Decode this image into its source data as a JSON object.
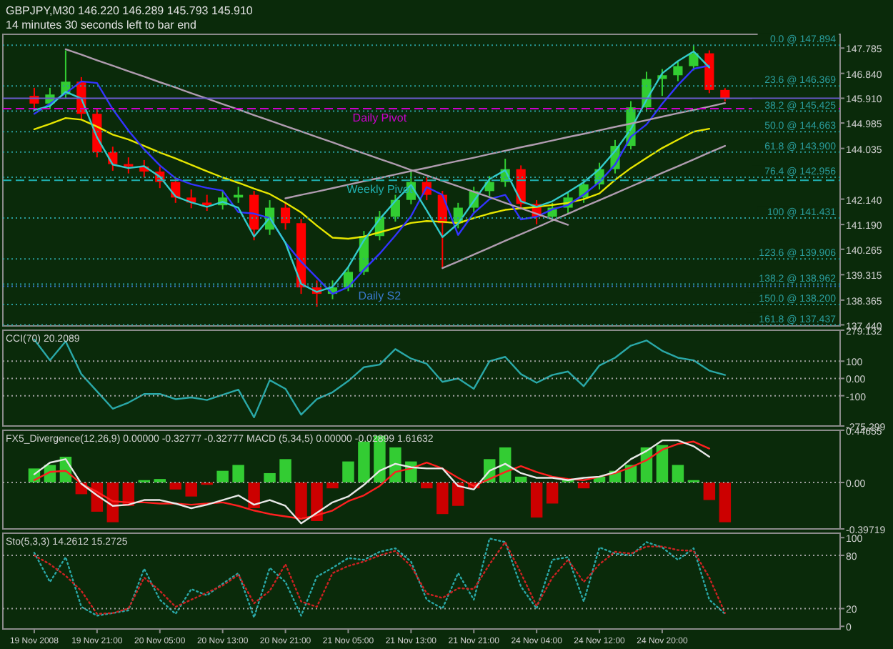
{
  "chart_data": [
    {
      "type": "candlestick",
      "title": "GBPJPY,M30  146.220 146.289 145.793 145.910",
      "subtitle": "14 minutes 30 seconds left to bar end",
      "tick_labels": "y",
      "categories": [
        null,
        null,
        null,
        null,
        null,
        null,
        null,
        null,
        null,
        null,
        null,
        null,
        null,
        null,
        null,
        null,
        null,
        null,
        null,
        null,
        null,
        null,
        null,
        null,
        null,
        null,
        null,
        null,
        null,
        null,
        null,
        null,
        null,
        null,
        null,
        null,
        null,
        null,
        null,
        null,
        null,
        null,
        null,
        null,
        null
      ],
      "ohlc": [
        [
          146.0,
          146.3,
          145.5,
          145.71
        ],
        [
          145.71,
          146.3,
          145.5,
          146.05
        ],
        [
          146.05,
          147.7,
          145.9,
          146.53
        ],
        [
          146.53,
          146.7,
          145.1,
          145.33
        ],
        [
          145.33,
          145.5,
          143.7,
          143.89
        ],
        [
          143.89,
          144.1,
          143.2,
          143.45
        ],
        [
          143.45,
          143.7,
          143.1,
          143.36
        ],
        [
          143.36,
          143.6,
          142.95,
          143.17
        ],
        [
          143.17,
          143.35,
          142.55,
          142.78
        ],
        [
          142.78,
          142.95,
          142.0,
          142.2
        ],
        [
          142.2,
          142.5,
          141.8,
          142.01
        ],
        [
          142.01,
          142.3,
          141.7,
          141.91
        ],
        [
          141.91,
          142.45,
          141.75,
          142.2
        ],
        [
          142.2,
          142.6,
          142.0,
          142.3
        ],
        [
          142.3,
          142.45,
          140.6,
          141.0
        ],
        [
          141.0,
          142.1,
          140.8,
          141.82
        ],
        [
          141.82,
          142.0,
          141.0,
          141.24
        ],
        [
          141.24,
          141.4,
          138.6,
          138.84
        ],
        [
          138.84,
          139.1,
          138.12,
          138.6
        ],
        [
          138.6,
          139.1,
          138.4,
          138.84
        ],
        [
          138.84,
          139.6,
          138.7,
          139.42
        ],
        [
          139.42,
          140.95,
          139.3,
          140.76
        ],
        [
          140.76,
          141.7,
          140.6,
          141.48
        ],
        [
          141.48,
          142.3,
          141.3,
          142.11
        ],
        [
          142.11,
          143.2,
          141.95,
          142.78
        ],
        [
          142.78,
          142.95,
          142.1,
          142.3
        ],
        [
          142.3,
          142.45,
          139.56,
          141.24
        ],
        [
          141.24,
          142.0,
          141.05,
          141.82
        ],
        [
          141.82,
          142.6,
          141.65,
          142.44
        ],
        [
          142.44,
          143.0,
          142.25,
          142.78
        ],
        [
          142.78,
          143.65,
          142.6,
          143.26
        ],
        [
          143.26,
          143.4,
          141.75,
          141.96
        ],
        [
          141.96,
          142.1,
          141.2,
          141.48
        ],
        [
          141.48,
          142.0,
          141.3,
          141.82
        ],
        [
          141.82,
          142.4,
          141.6,
          142.2
        ],
        [
          142.2,
          142.9,
          142.0,
          142.69
        ],
        [
          142.69,
          143.5,
          142.5,
          143.26
        ],
        [
          143.26,
          144.35,
          143.1,
          144.13
        ],
        [
          144.13,
          145.8,
          144.0,
          145.57
        ],
        [
          145.57,
          146.9,
          145.4,
          146.63
        ],
        [
          146.63,
          147.0,
          146.0,
          146.77
        ],
        [
          146.77,
          147.3,
          146.55,
          147.11
        ],
        [
          147.11,
          147.894,
          146.95,
          147.59
        ],
        [
          147.59,
          147.7,
          146.1,
          146.22
        ],
        [
          146.22,
          146.289,
          145.793,
          145.91
        ]
      ],
      "colors": [
        "#ff0000",
        "#32cd32",
        "#32cd32",
        "#ff0000",
        "#ff0000",
        "#ff0000",
        "#ff0000",
        "#ff0000",
        "#ff0000",
        "#ff0000",
        "#ff0000",
        "#ff0000",
        "#32cd32",
        "#32cd32",
        "#ff0000",
        "#32cd32",
        "#ff0000",
        "#ff0000",
        "#ff0000",
        "#32cd32",
        "#32cd32",
        "#32cd32",
        "#32cd32",
        "#32cd32",
        "#32cd32",
        "#ff0000",
        "#ff0000",
        "#32cd32",
        "#32cd32",
        "#32cd32",
        "#32cd32",
        "#ff0000",
        "#ff0000",
        "#32cd32",
        "#32cd32",
        "#32cd32",
        "#32cd32",
        "#32cd32",
        "#32cd32",
        "#32cd32",
        "#32cd32",
        "#32cd32",
        "#32cd32",
        "#ff0000",
        "#ff0000"
      ],
      "series": [
        {
          "type": "line",
          "color": "#e6e600",
          "values": [
            144.75,
            144.95,
            145.17,
            145.11,
            144.85,
            144.55,
            144.37,
            144.13,
            143.88,
            143.66,
            143.42,
            143.18,
            142.95,
            142.75,
            142.53,
            142.33,
            142.0,
            141.64,
            141.15,
            140.7,
            140.66,
            140.74,
            140.9,
            141.06,
            141.25,
            141.32,
            141.29,
            141.24,
            141.43,
            141.6,
            141.74,
            141.79,
            141.85,
            141.92,
            142.0,
            142.14,
            142.35,
            142.86,
            143.3,
            143.68,
            144.05,
            144.36,
            144.66,
            144.77,
            null
          ]
        },
        {
          "type": "line",
          "color": "#3333ff",
          "values": [
            145.33,
            145.7,
            146.1,
            146.54,
            146.48,
            145.5,
            144.7,
            144.0,
            143.4,
            142.92,
            142.7,
            142.56,
            142.46,
            141.65,
            141.6,
            141.43,
            140.51,
            139.8,
            139.2,
            138.6,
            138.85,
            139.5,
            140.1,
            140.78,
            141.5,
            142.59,
            142.3,
            140.8,
            141.62,
            142.14,
            142.3,
            141.38,
            141.48,
            141.76,
            141.92,
            142.31,
            142.78,
            143.43,
            144.47,
            144.93,
            145.7,
            146.4,
            147.01,
            147.13,
            null
          ]
        },
        {
          "type": "line",
          "color": "#33cccc",
          "values": [
            145.47,
            145.62,
            146.15,
            145.9,
            144.45,
            143.43,
            143.3,
            143.37,
            142.98,
            142.24,
            142.02,
            141.85,
            142.04,
            141.82,
            140.74,
            141.45,
            140.5,
            138.97,
            138.67,
            138.86,
            139.6,
            140.6,
            141.39,
            142.07,
            142.67,
            141.72,
            140.72,
            141.23,
            142.07,
            142.89,
            143.22,
            142.06,
            141.85,
            142.06,
            142.4,
            142.77,
            143.26,
            143.94,
            144.75,
            145.85,
            146.84,
            147.3,
            147.66,
            147.06,
            null
          ]
        },
        {
          "type": "line",
          "color": "#b09cb0",
          "values": [
            null,
            null,
            null,
            null,
            null,
            null,
            null,
            null,
            null,
            null,
            null,
            null,
            null,
            null,
            null,
            null,
            142.17,
            142.3,
            142.42,
            142.55,
            142.68,
            142.81,
            142.93,
            143.06,
            143.19,
            143.31,
            143.44,
            143.57,
            143.69,
            143.82,
            143.95,
            144.08,
            144.2,
            144.33,
            144.46,
            144.58,
            144.71,
            144.84,
            144.96,
            145.09,
            145.22,
            145.35,
            145.47,
            145.6,
            145.73
          ]
        },
        {
          "type": "line",
          "color": "#b09cb0",
          "values": [
            null,
            null,
            null,
            null,
            null,
            null,
            null,
            null,
            null,
            null,
            null,
            null,
            null,
            null,
            null,
            null,
            null,
            null,
            null,
            null,
            null,
            null,
            null,
            null,
            null,
            null,
            139.56,
            139.81,
            140.07,
            140.32,
            140.58,
            140.83,
            141.08,
            141.34,
            141.59,
            141.85,
            142.1,
            142.35,
            142.61,
            142.86,
            143.12,
            143.37,
            143.62,
            143.88,
            144.13
          ]
        },
        {
          "type": "line",
          "color": "#b09cb0",
          "values": [
            null,
            null,
            147.74,
            147.54,
            147.33,
            147.13,
            146.92,
            146.72,
            146.51,
            146.31,
            146.1,
            145.9,
            145.69,
            145.49,
            145.28,
            145.08,
            144.87,
            144.67,
            144.46,
            144.26,
            144.05,
            143.85,
            143.64,
            143.44,
            143.23,
            143.03,
            142.82,
            142.62,
            142.41,
            142.21,
            142.0,
            141.8,
            141.59,
            141.39,
            141.18,
            null,
            null,
            null,
            null,
            null,
            null,
            null,
            null,
            null,
            null
          ]
        }
      ],
      "ylim": [
        137.4,
        148.3
      ],
      "yticks": [
        {
          "value": 137.44,
          "label": "137.440"
        },
        {
          "value": 138.365,
          "label": "138.365"
        },
        {
          "value": 139.315,
          "label": "139.315"
        },
        {
          "value": 140.265,
          "label": "140.265"
        },
        {
          "value": 141.19,
          "label": "141.190"
        },
        {
          "value": 142.14,
          "label": "142.140"
        },
        {
          "value": 144.035,
          "label": "144.035"
        },
        {
          "value": 144.985,
          "label": "144.985"
        },
        {
          "value": 145.91,
          "label": "145.910"
        },
        {
          "value": 146.84,
          "label": "146.840"
        },
        {
          "value": 147.785,
          "label": "147.785"
        }
      ],
      "ref_lines": [
        {
          "axis": "y",
          "value": 147.894,
          "label": "0.0 @ 147.894",
          "color": "#2a9d9d",
          "line_style": "dotted"
        },
        {
          "axis": "y",
          "value": 146.369,
          "label": "23.6 @ 146.369",
          "color": "#2a9d9d",
          "line_style": "dotted"
        },
        {
          "axis": "y",
          "value": 145.425,
          "label": "38.2 @ 145.425",
          "color": "#2a9d9d",
          "line_style": "dotted"
        },
        {
          "axis": "y",
          "value": 144.663,
          "label": "50.0 @ 144.663",
          "color": "#2a9d9d",
          "line_style": "dotted"
        },
        {
          "axis": "y",
          "value": 143.9,
          "label": "61.8 @ 143.900",
          "color": "#2a9d9d",
          "line_style": "dotted"
        },
        {
          "axis": "y",
          "value": 142.956,
          "label": "76.4 @ 142.956",
          "color": "#2a9d9d",
          "line_style": "dotted"
        },
        {
          "axis": "y",
          "value": 141.431,
          "label": "100 @ 141.431",
          "color": "#2a9d9d",
          "line_style": "dotted"
        },
        {
          "axis": "y",
          "value": 139.906,
          "label": "123.6 @ 139.906",
          "color": "#2a9d9d",
          "line_style": "dotted"
        },
        {
          "axis": "y",
          "value": 138.962,
          "label": "138.2 @ 138.962",
          "color": "#2a9d9d",
          "line_style": "dotted"
        },
        {
          "axis": "y",
          "value": 138.2,
          "label": "150.0 @ 138.200",
          "color": "#2a9d9d",
          "line_style": "dotted"
        },
        {
          "axis": "y",
          "value": 137.437,
          "label": "161.8 @ 137.437",
          "color": "#2a9d9d",
          "line_style": "dotted"
        },
        {
          "axis": "y",
          "value": 145.91,
          "color": "#6a5acd",
          "line_style": "solid"
        },
        {
          "axis": "y",
          "value": 145.52,
          "label": "Daily Pivot",
          "color": "#cc00cc",
          "line_style": "dashed"
        },
        {
          "axis": "y",
          "value": 142.84,
          "label": "Weekly Pivot",
          "color": "#20b0b0",
          "line_style": "dashed"
        },
        {
          "axis": "y",
          "value": 138.88,
          "label": "Daily S2",
          "color": "#3a7ad0",
          "line_style": "dotted"
        }
      ]
    },
    {
      "type": "line",
      "title": "CCI(70) 20.2089",
      "tick_labels": "y",
      "color": "#2aa8a8",
      "categories": [
        null,
        null,
        null,
        null,
        null,
        null,
        null,
        null,
        null,
        null,
        null,
        null,
        null,
        null,
        null,
        null,
        null,
        null,
        null,
        null,
        null,
        null,
        null,
        null,
        null,
        null,
        null,
        null,
        null,
        null,
        null,
        null,
        null,
        null,
        null,
        null,
        null,
        null,
        null,
        null,
        null,
        null,
        null,
        null,
        null
      ],
      "values": [
        225,
        105,
        215,
        25,
        -75,
        -175,
        -140,
        -90,
        -90,
        -120,
        -110,
        -125,
        -95,
        -65,
        -225,
        -10,
        -60,
        -210,
        -120,
        -80,
        -15,
        65,
        80,
        170,
        115,
        85,
        -20,
        0,
        -60,
        100,
        125,
        25,
        -25,
        20,
        40,
        -45,
        75,
        120,
        190,
        220,
        160,
        120,
        105,
        45,
        20
      ],
      "ylim": [
        -275.299,
        279.132
      ],
      "yticks": [
        {
          "value": 279.132,
          "label": "279.132"
        },
        100,
        {
          "value": 0,
          "label": "0.00"
        },
        -100,
        {
          "value": -275.299,
          "label": "-275.299"
        }
      ],
      "ref_lines": [
        {
          "axis": "y",
          "value": 100,
          "color": "#a0a0a0",
          "line_style": "dotted"
        },
        {
          "axis": "y",
          "value": 0,
          "color": "#a0a0a0",
          "line_style": "dotted"
        },
        {
          "axis": "y",
          "value": -100,
          "color": "#a0a0a0",
          "line_style": "dotted"
        }
      ]
    },
    {
      "type": "bar",
      "title": "FX5_Divergence(12,26,9) 0.00000 -0.32777 -0.32777  MACD  (5,34,5) 0.00000 -0.02899 1.61632",
      "tick_labels": "y",
      "categories": [
        null,
        null,
        null,
        null,
        null,
        null,
        null,
        null,
        null,
        null,
        null,
        null,
        null,
        null,
        null,
        null,
        null,
        null,
        null,
        null,
        null,
        null,
        null,
        null,
        null,
        null,
        null,
        null,
        null,
        null,
        null,
        null,
        null,
        null,
        null,
        null,
        null,
        null,
        null,
        null,
        null,
        null,
        null,
        null,
        null
      ],
      "values": [
        0.12,
        0.15,
        0.22,
        -0.1,
        -0.25,
        -0.34,
        -0.2,
        0.02,
        0.03,
        -0.06,
        -0.12,
        -0.02,
        0.1,
        0.15,
        -0.22,
        0.08,
        0.2,
        -0.3,
        -0.33,
        -0.05,
        0.18,
        0.35,
        0.4,
        0.3,
        0.18,
        -0.05,
        -0.27,
        -0.2,
        -0.05,
        0.2,
        0.3,
        0.05,
        -0.3,
        -0.18,
        0.03,
        -0.05,
        0.05,
        0.1,
        0.15,
        0.3,
        0.32,
        0.15,
        0.02,
        -0.15,
        -0.34
      ],
      "colors": [
        "#33cc33",
        "#33cc33",
        "#33cc33",
        "#cc0000",
        "#cc0000",
        "#cc0000",
        "#cc0000",
        "#33cc33",
        "#33cc33",
        "#cc0000",
        "#cc0000",
        "#cc0000",
        "#33cc33",
        "#33cc33",
        "#cc0000",
        "#33cc33",
        "#33cc33",
        "#cc0000",
        "#cc0000",
        "#cc0000",
        "#33cc33",
        "#33cc33",
        "#33cc33",
        "#33cc33",
        "#33cc33",
        "#cc0000",
        "#cc0000",
        "#cc0000",
        "#cc0000",
        "#33cc33",
        "#33cc33",
        "#33cc33",
        "#cc0000",
        "#cc0000",
        "#33cc33",
        "#cc0000",
        "#33cc33",
        "#33cc33",
        "#33cc33",
        "#33cc33",
        "#33cc33",
        "#33cc33",
        "#33cc33",
        "#cc0000",
        "#cc0000"
      ],
      "series": [
        {
          "type": "line",
          "color": "#ff2020",
          "values": [
            0.02,
            0.09,
            0.1,
            -0.01,
            -0.08,
            -0.16,
            -0.17,
            -0.17,
            -0.18,
            -0.18,
            -0.19,
            -0.18,
            -0.17,
            -0.2,
            -0.24,
            -0.27,
            -0.29,
            -0.31,
            -0.28,
            -0.24,
            -0.16,
            -0.11,
            -0.03,
            0.09,
            0.12,
            0.17,
            0.12,
            0.04,
            -0.03,
            0.03,
            0.09,
            0.14,
            0.09,
            0.05,
            0.03,
            0.02,
            0.05,
            0.08,
            0.13,
            0.19,
            0.28,
            0.33,
            0.35,
            0.29,
            null
          ]
        },
        {
          "type": "line",
          "color": "#e8e8e8",
          "values": [
            0.07,
            0.17,
            0.2,
            -0.01,
            -0.11,
            -0.2,
            -0.19,
            -0.15,
            -0.15,
            -0.18,
            -0.22,
            -0.19,
            -0.15,
            -0.11,
            -0.19,
            -0.15,
            -0.2,
            -0.35,
            -0.26,
            -0.17,
            -0.12,
            -0.02,
            0.1,
            0.16,
            0.13,
            0.12,
            0.12,
            -0.03,
            -0.06,
            0.1,
            0.16,
            0.08,
            0.04,
            0.04,
            0.02,
            0.04,
            0.05,
            0.09,
            0.2,
            0.27,
            0.36,
            0.36,
            0.31,
            0.22,
            null
          ]
        }
      ],
      "ylim": [
        -0.39719,
        0.44655
      ],
      "yticks": [
        {
          "value": 0.44655,
          "label": "0.44655"
        },
        {
          "value": 0,
          "label": "0.00"
        },
        {
          "value": -0.39719,
          "label": "-0.39719"
        }
      ],
      "ref_lines": [
        {
          "axis": "y",
          "value": 0,
          "color": "#a0a0a0",
          "line_style": "dotted"
        }
      ]
    },
    {
      "type": "line",
      "title": "Sto(5,3,3) 14.2612 15.2725",
      "categories": [
        "19 Nov 2008",
        null,
        null,
        null,
        "19 Nov 21:00",
        null,
        null,
        null,
        "20 Nov 05:00",
        null,
        null,
        null,
        "20 Nov 13:00",
        null,
        null,
        null,
        "20 Nov 21:00",
        null,
        null,
        null,
        "21 Nov 05:00",
        null,
        null,
        null,
        "21 Nov 13:00",
        null,
        null,
        null,
        "21 Nov 21:00",
        null,
        null,
        null,
        "24 Nov 04:00",
        null,
        null,
        null,
        "24 Nov 12:00",
        null,
        null,
        null,
        "24 Nov 20:00",
        null,
        null,
        null,
        null
      ],
      "series": [
        {
          "color": "#2aa8a8",
          "line_style": "dotted",
          "values": [
            83,
            50,
            78,
            22,
            12,
            15,
            18,
            65,
            30,
            14,
            42,
            35,
            48,
            60,
            10,
            66,
            50,
            12,
            56,
            66,
            77,
            75,
            84,
            88,
            73,
            30,
            20,
            60,
            30,
            99,
            95,
            45,
            20,
            75,
            78,
            28,
            89,
            82,
            80,
            95,
            89,
            75,
            88,
            30,
            14
          ]
        },
        {
          "color": "#cc2222",
          "line_style": "dotted",
          "values": [
            80,
            70,
            57,
            40,
            14,
            15,
            20,
            55,
            40,
            22,
            30,
            38,
            46,
            58,
            26,
            40,
            70,
            28,
            22,
            60,
            68,
            73,
            80,
            85,
            68,
            37,
            32,
            43,
            42,
            70,
            95,
            60,
            23,
            55,
            75,
            50,
            70,
            84,
            82,
            90,
            90,
            86,
            85,
            55,
            15
          ]
        }
      ],
      "ylim": [
        -3,
        105
      ],
      "yticks": [
        100,
        80,
        20,
        0
      ],
      "ref_lines": [
        {
          "axis": "y",
          "value": 80,
          "color": "#a0a0a0",
          "line_style": "dotted"
        },
        {
          "axis": "y",
          "value": 20,
          "color": "#a0a0a0",
          "line_style": "dotted"
        }
      ]
    }
  ]
}
